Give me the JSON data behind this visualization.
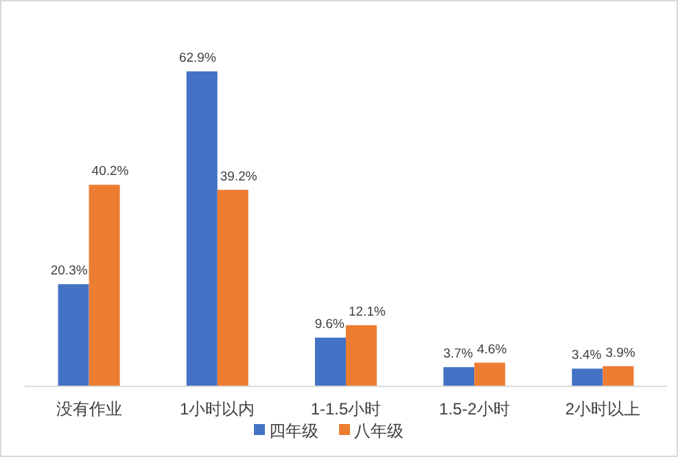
{
  "chart_data": {
    "type": "bar",
    "categories": [
      "没有作业",
      "1小时以内",
      "1-1.5小时",
      "1.5-2小时",
      "2小时以上"
    ],
    "series": [
      {
        "name": "四年级",
        "color": "#4472c4",
        "values": [
          20.3,
          62.9,
          9.6,
          3.7,
          3.4
        ],
        "value_labels": [
          "20.3%",
          "62.9%",
          "9.6%",
          "3.7%",
          "3.4%"
        ]
      },
      {
        "name": "八年级",
        "color": "#ed7d31",
        "values": [
          40.2,
          39.2,
          12.1,
          4.6,
          3.9
        ],
        "value_labels": [
          "40.2%",
          "39.2%",
          "12.1%",
          "4.6%",
          "3.9%"
        ]
      }
    ],
    "legend": "bottom"
  }
}
